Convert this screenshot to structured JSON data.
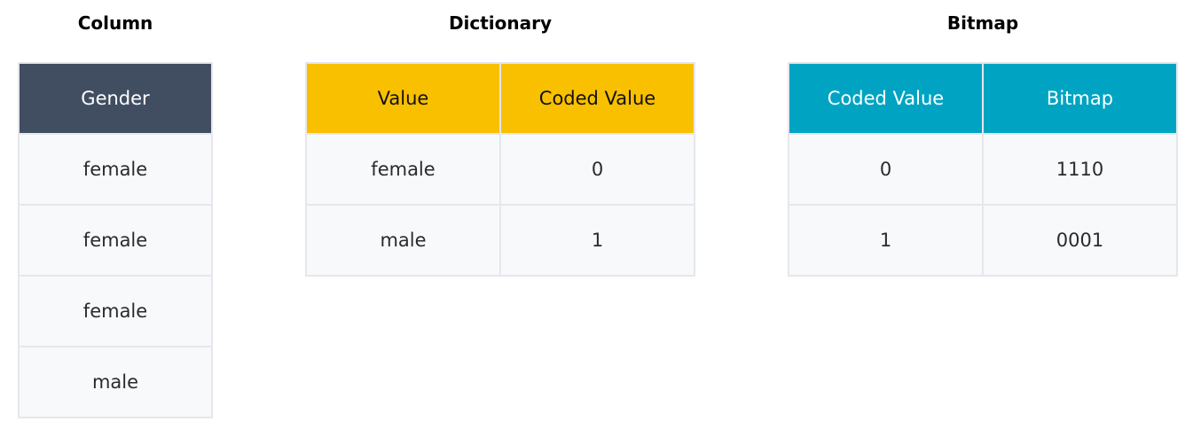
{
  "colors": {
    "column_header": "#414e62",
    "dictionary_header": "#f9c000",
    "bitmap_header": "#00a4c2",
    "cell_bg": "#f8f9fb",
    "border": "#e5e7eb"
  },
  "column": {
    "title": "Column",
    "header": "Gender",
    "rows": [
      "female",
      "female",
      "female",
      "male"
    ]
  },
  "dictionary": {
    "title": "Dictionary",
    "headers": [
      "Value",
      "Coded Value"
    ],
    "rows": [
      [
        "female",
        "0"
      ],
      [
        "male",
        "1"
      ]
    ]
  },
  "bitmap": {
    "title": "Bitmap",
    "headers": [
      "Coded Value",
      "Bitmap"
    ],
    "rows": [
      [
        "0",
        "1110"
      ],
      [
        "1",
        "0001"
      ]
    ]
  }
}
